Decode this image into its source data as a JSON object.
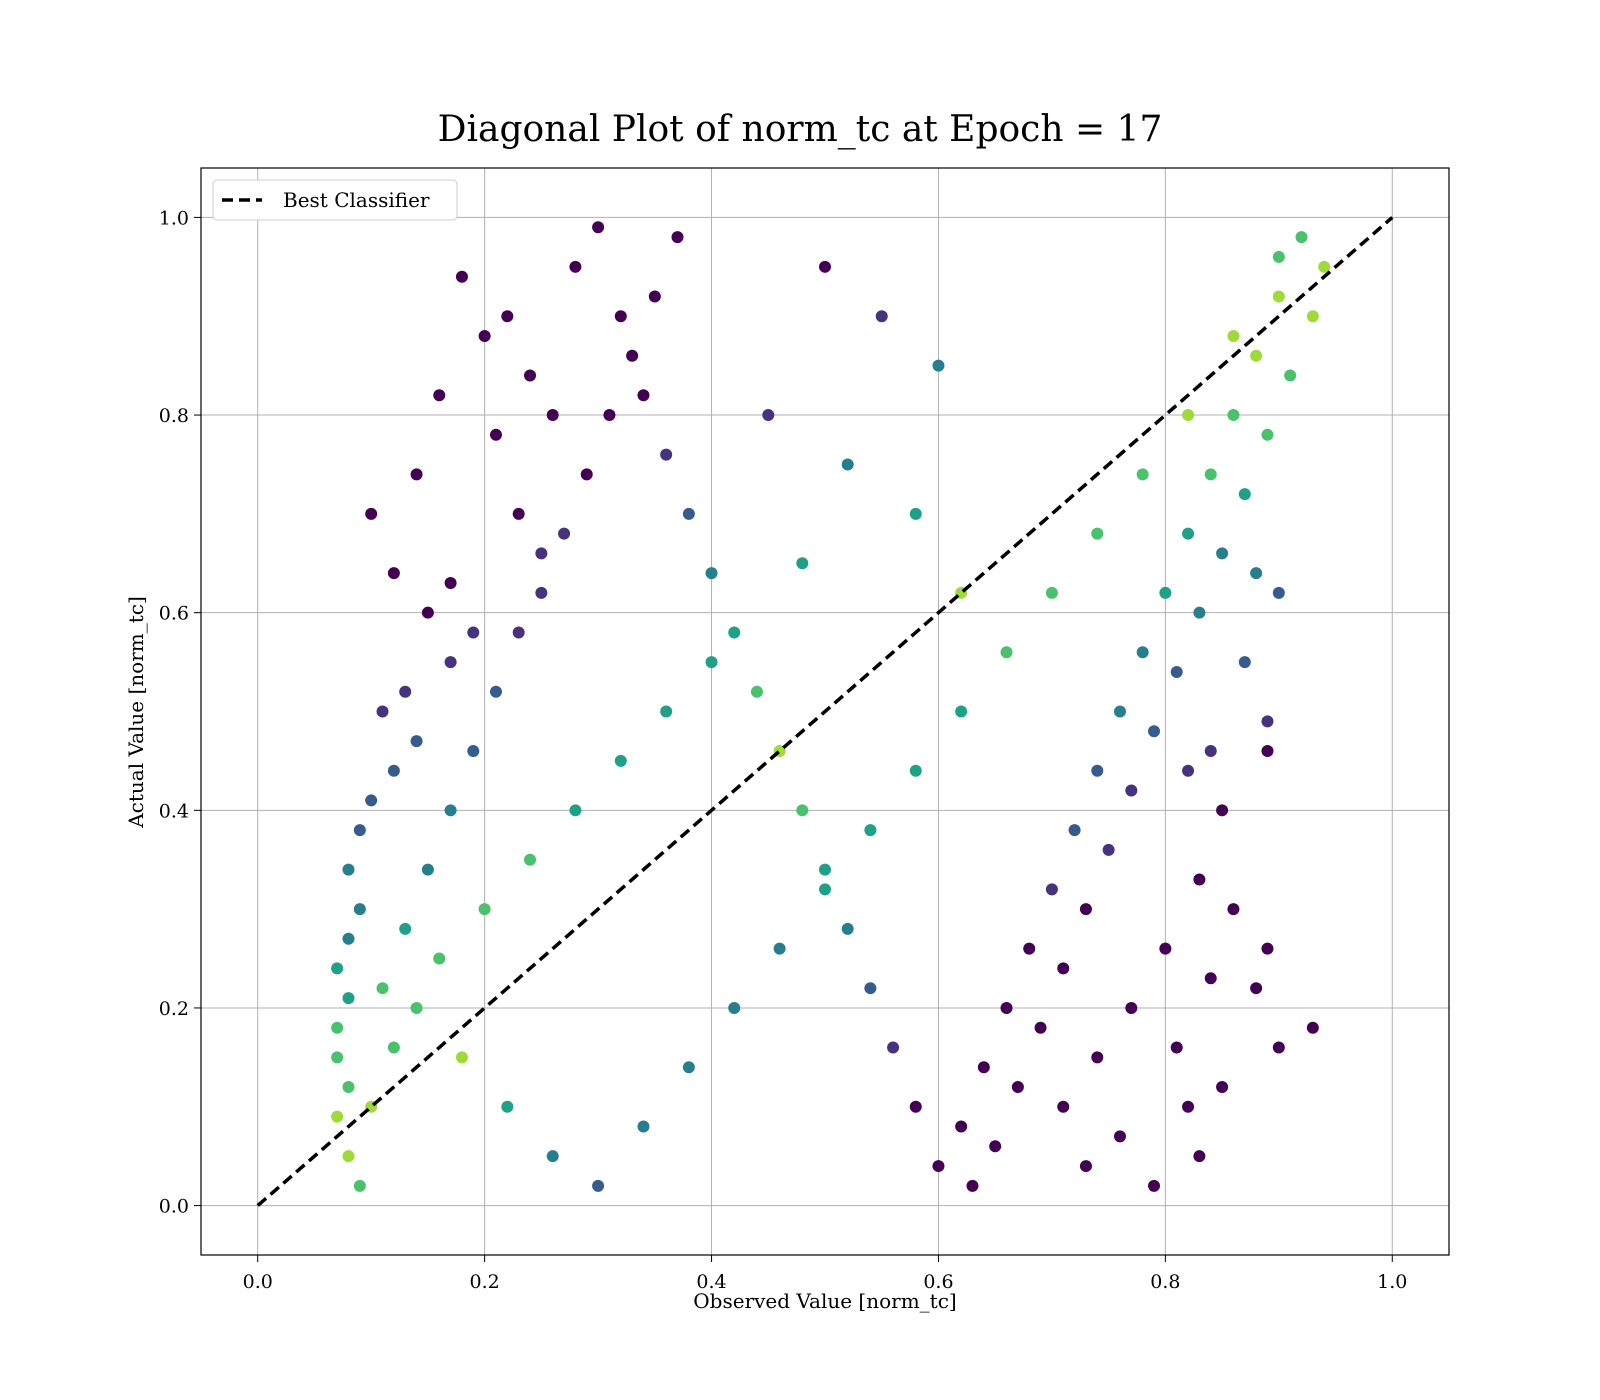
{
  "chart_data": {
    "type": "scatter",
    "title": "Diagonal Plot of norm_tc at Epoch = 17",
    "xlabel": "Observed Value [norm_tc]",
    "ylabel": "Actual Value [norm_tc]",
    "xlim": [
      -0.05,
      1.05
    ],
    "ylim": [
      -0.05,
      1.05
    ],
    "xticks": [
      0.0,
      0.2,
      0.4,
      0.6,
      0.8,
      1.0
    ],
    "yticks": [
      0.0,
      0.2,
      0.4,
      0.6,
      0.8,
      1.0
    ],
    "xtick_labels": [
      "0.0",
      "0.2",
      "0.4",
      "0.6",
      "0.8",
      "1.0"
    ],
    "ytick_labels": [
      "0.0",
      "0.2",
      "0.4",
      "0.6",
      "0.8",
      "1.0"
    ],
    "grid": true,
    "colormap": "viridis",
    "series": [
      {
        "name": "Best Classifier",
        "kind": "line",
        "style": "dashed",
        "color": "#000000",
        "x": [
          0.0,
          1.0
        ],
        "y": [
          0.0,
          1.0
        ]
      }
    ],
    "scatter_points": [
      [
        0.1,
        0.7
      ],
      [
        0.12,
        0.64
      ],
      [
        0.14,
        0.74
      ],
      [
        0.17,
        0.63
      ],
      [
        0.15,
        0.6
      ],
      [
        0.18,
        0.94
      ],
      [
        0.2,
        0.88
      ],
      [
        0.16,
        0.82
      ],
      [
        0.22,
        0.9
      ],
      [
        0.24,
        0.84
      ],
      [
        0.26,
        0.8
      ],
      [
        0.21,
        0.78
      ],
      [
        0.23,
        0.7
      ],
      [
        0.25,
        0.66
      ],
      [
        0.19,
        0.58
      ],
      [
        0.17,
        0.55
      ],
      [
        0.13,
        0.52
      ],
      [
        0.11,
        0.5
      ],
      [
        0.14,
        0.47
      ],
      [
        0.12,
        0.44
      ],
      [
        0.1,
        0.41
      ],
      [
        0.09,
        0.38
      ],
      [
        0.08,
        0.34
      ],
      [
        0.09,
        0.3
      ],
      [
        0.08,
        0.27
      ],
      [
        0.07,
        0.24
      ],
      [
        0.08,
        0.21
      ],
      [
        0.07,
        0.18
      ],
      [
        0.07,
        0.15
      ],
      [
        0.08,
        0.12
      ],
      [
        0.07,
        0.09
      ],
      [
        0.08,
        0.05
      ],
      [
        0.09,
        0.02
      ],
      [
        0.1,
        0.1
      ],
      [
        0.12,
        0.16
      ],
      [
        0.11,
        0.22
      ],
      [
        0.13,
        0.28
      ],
      [
        0.15,
        0.34
      ],
      [
        0.17,
        0.4
      ],
      [
        0.19,
        0.46
      ],
      [
        0.21,
        0.52
      ],
      [
        0.23,
        0.58
      ],
      [
        0.25,
        0.62
      ],
      [
        0.27,
        0.68
      ],
      [
        0.29,
        0.74
      ],
      [
        0.31,
        0.8
      ],
      [
        0.33,
        0.86
      ],
      [
        0.35,
        0.92
      ],
      [
        0.37,
        0.98
      ],
      [
        0.3,
        0.99
      ],
      [
        0.28,
        0.95
      ],
      [
        0.32,
        0.9
      ],
      [
        0.34,
        0.82
      ],
      [
        0.36,
        0.76
      ],
      [
        0.38,
        0.7
      ],
      [
        0.4,
        0.64
      ],
      [
        0.42,
        0.58
      ],
      [
        0.44,
        0.52
      ],
      [
        0.46,
        0.46
      ],
      [
        0.48,
        0.4
      ],
      [
        0.5,
        0.34
      ],
      [
        0.52,
        0.28
      ],
      [
        0.54,
        0.22
      ],
      [
        0.56,
        0.16
      ],
      [
        0.58,
        0.1
      ],
      [
        0.6,
        0.04
      ],
      [
        0.62,
        0.08
      ],
      [
        0.64,
        0.14
      ],
      [
        0.66,
        0.2
      ],
      [
        0.68,
        0.26
      ],
      [
        0.7,
        0.32
      ],
      [
        0.72,
        0.38
      ],
      [
        0.74,
        0.44
      ],
      [
        0.76,
        0.5
      ],
      [
        0.78,
        0.56
      ],
      [
        0.8,
        0.62
      ],
      [
        0.82,
        0.68
      ],
      [
        0.84,
        0.74
      ],
      [
        0.86,
        0.8
      ],
      [
        0.88,
        0.86
      ],
      [
        0.9,
        0.92
      ],
      [
        0.92,
        0.98
      ],
      [
        0.94,
        0.95
      ],
      [
        0.93,
        0.9
      ],
      [
        0.91,
        0.84
      ],
      [
        0.89,
        0.78
      ],
      [
        0.87,
        0.72
      ],
      [
        0.85,
        0.66
      ],
      [
        0.83,
        0.6
      ],
      [
        0.81,
        0.54
      ],
      [
        0.79,
        0.48
      ],
      [
        0.77,
        0.42
      ],
      [
        0.75,
        0.36
      ],
      [
        0.73,
        0.3
      ],
      [
        0.71,
        0.24
      ],
      [
        0.69,
        0.18
      ],
      [
        0.67,
        0.12
      ],
      [
        0.65,
        0.06
      ],
      [
        0.63,
        0.02
      ],
      [
        0.8,
        0.26
      ],
      [
        0.84,
        0.23
      ],
      [
        0.88,
        0.22
      ],
      [
        0.9,
        0.16
      ],
      [
        0.93,
        0.18
      ],
      [
        0.89,
        0.26
      ],
      [
        0.86,
        0.3
      ],
      [
        0.83,
        0.33
      ],
      [
        0.85,
        0.4
      ],
      [
        0.82,
        0.44
      ],
      [
        0.84,
        0.46
      ],
      [
        0.89,
        0.46
      ],
      [
        0.89,
        0.49
      ],
      [
        0.87,
        0.55
      ],
      [
        0.9,
        0.62
      ],
      [
        0.88,
        0.64
      ],
      [
        0.83,
        0.05
      ],
      [
        0.82,
        0.1
      ],
      [
        0.85,
        0.12
      ],
      [
        0.81,
        0.16
      ],
      [
        0.79,
        0.02
      ],
      [
        0.76,
        0.07
      ],
      [
        0.73,
        0.04
      ],
      [
        0.71,
        0.1
      ],
      [
        0.74,
        0.15
      ],
      [
        0.77,
        0.2
      ],
      [
        0.5,
        0.95
      ],
      [
        0.55,
        0.9
      ],
      [
        0.6,
        0.85
      ],
      [
        0.45,
        0.8
      ],
      [
        0.52,
        0.75
      ],
      [
        0.58,
        0.7
      ],
      [
        0.48,
        0.65
      ],
      [
        0.62,
        0.62
      ],
      [
        0.4,
        0.55
      ],
      [
        0.36,
        0.5
      ],
      [
        0.32,
        0.45
      ],
      [
        0.28,
        0.4
      ],
      [
        0.24,
        0.35
      ],
      [
        0.2,
        0.3
      ],
      [
        0.16,
        0.25
      ],
      [
        0.14,
        0.2
      ],
      [
        0.18,
        0.15
      ],
      [
        0.22,
        0.1
      ],
      [
        0.26,
        0.05
      ],
      [
        0.3,
        0.02
      ],
      [
        0.34,
        0.08
      ],
      [
        0.38,
        0.14
      ],
      [
        0.42,
        0.2
      ],
      [
        0.46,
        0.26
      ],
      [
        0.5,
        0.32
      ],
      [
        0.54,
        0.38
      ],
      [
        0.58,
        0.44
      ],
      [
        0.62,
        0.5
      ],
      [
        0.66,
        0.56
      ],
      [
        0.7,
        0.62
      ],
      [
        0.74,
        0.68
      ],
      [
        0.78,
        0.74
      ],
      [
        0.82,
        0.8
      ],
      [
        0.86,
        0.88
      ],
      [
        0.9,
        0.96
      ]
    ],
    "legend": {
      "entries": [
        "Best Classifier"
      ],
      "placement": "top-left"
    }
  }
}
